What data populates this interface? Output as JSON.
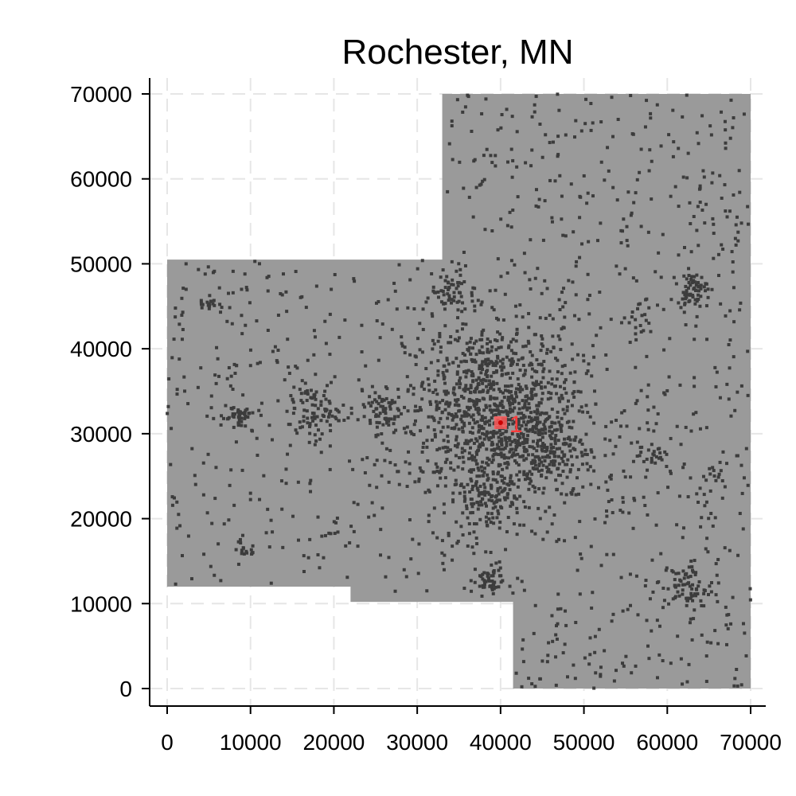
{
  "chart_data": {
    "type": "scatter",
    "title": "Rochester, MN",
    "xlabel": "",
    "ylabel": "",
    "xlim": [
      -2000,
      71000
    ],
    "ylim": [
      -2000,
      72000
    ],
    "x_ticks": [
      0,
      10000,
      20000,
      30000,
      40000,
      50000,
      60000,
      70000
    ],
    "y_ticks": [
      0,
      10000,
      20000,
      30000,
      40000,
      50000,
      60000,
      70000
    ],
    "grid": true,
    "grid_style": "dashed",
    "colors": {
      "region": "#9a9a9a",
      "built_up": "#3c3c3c",
      "marker": "#ff5a5a",
      "grid": "#e6e6e6"
    },
    "region_outline": [
      [
        0,
        12000
      ],
      [
        0,
        50500
      ],
      [
        33000,
        50500
      ],
      [
        33000,
        70000
      ],
      [
        70000,
        70000
      ],
      [
        70000,
        0
      ],
      [
        41500,
        0
      ],
      [
        41500,
        10200
      ],
      [
        22000,
        10200
      ],
      [
        22000,
        12000
      ]
    ],
    "clusters": [
      {
        "x": 39000,
        "y": 33000,
        "spread": 5200,
        "density": 900
      },
      {
        "x": 44500,
        "y": 28500,
        "spread": 3000,
        "density": 220
      },
      {
        "x": 38500,
        "y": 23000,
        "spread": 2200,
        "density": 120
      },
      {
        "x": 63000,
        "y": 47000,
        "spread": 900,
        "density": 60
      },
      {
        "x": 62500,
        "y": 12000,
        "spread": 1500,
        "density": 70
      },
      {
        "x": 17500,
        "y": 32500,
        "spread": 1500,
        "density": 80
      },
      {
        "x": 8500,
        "y": 32000,
        "spread": 1000,
        "density": 45
      },
      {
        "x": 25500,
        "y": 32800,
        "spread": 1300,
        "density": 55
      },
      {
        "x": 38500,
        "y": 12800,
        "spread": 900,
        "density": 45
      },
      {
        "x": 34000,
        "y": 46500,
        "spread": 1100,
        "density": 45
      },
      {
        "x": 58000,
        "y": 27500,
        "spread": 800,
        "density": 25
      },
      {
        "x": 5000,
        "y": 45500,
        "spread": 600,
        "density": 15
      },
      {
        "x": 9200,
        "y": 16500,
        "spread": 700,
        "density": 18
      },
      {
        "x": 56500,
        "y": 43500,
        "spread": 900,
        "density": 18
      },
      {
        "x": 66000,
        "y": 25500,
        "spread": 500,
        "density": 10
      }
    ],
    "scattered_points": 1400,
    "marker": {
      "label": "1",
      "x": 40000,
      "y": 31300
    }
  }
}
